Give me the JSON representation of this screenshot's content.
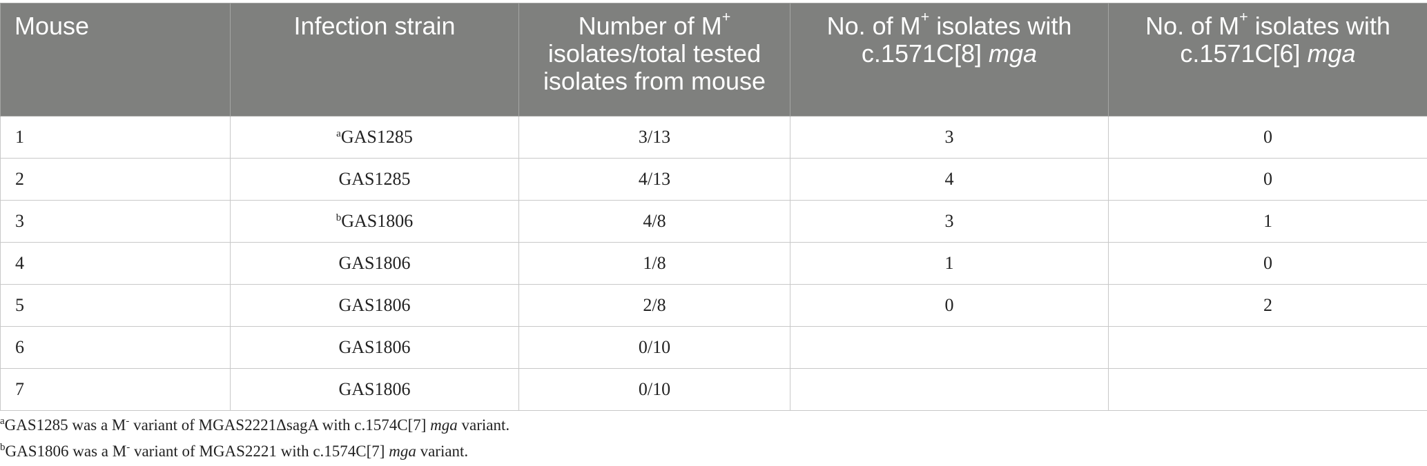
{
  "table": {
    "headers": {
      "mouse": "Mouse",
      "strain": "Infection strain",
      "number": {
        "line1_pre": "Number of M",
        "sup": "+",
        "line2": "isolates/total tested",
        "line3": "isolates from mouse"
      },
      "c8": {
        "line1_pre": "No. of M",
        "sup": "+",
        "line1_post": " isolates with",
        "line2_pre": "c.1571C[8] ",
        "line2_em": "mga"
      },
      "c6": {
        "line1_pre": "No. of M",
        "sup": "+",
        "line1_post": " isolates with",
        "line2_pre": "c.1571C[6] ",
        "line2_em": "mga"
      }
    },
    "rows": [
      {
        "mouse": "1",
        "strain_sup": "a",
        "strain": "GAS1285",
        "ratio": "3/13",
        "c8": "3",
        "c6": "0"
      },
      {
        "mouse": "2",
        "strain_sup": "",
        "strain": "GAS1285",
        "ratio": "4/13",
        "c8": "4",
        "c6": "0"
      },
      {
        "mouse": "3",
        "strain_sup": "b",
        "strain": "GAS1806",
        "ratio": "4/8",
        "c8": "3",
        "c6": "1"
      },
      {
        "mouse": "4",
        "strain_sup": "",
        "strain": "GAS1806",
        "ratio": "1/8",
        "c8": "1",
        "c6": "0"
      },
      {
        "mouse": "5",
        "strain_sup": "",
        "strain": "GAS1806",
        "ratio": "2/8",
        "c8": "0",
        "c6": "2"
      },
      {
        "mouse": "6",
        "strain_sup": "",
        "strain": "GAS1806",
        "ratio": "0/10",
        "c8": "",
        "c6": ""
      },
      {
        "mouse": "7",
        "strain_sup": "",
        "strain": "GAS1806",
        "ratio": "0/10",
        "c8": "",
        "c6": ""
      }
    ]
  },
  "footnotes": [
    {
      "sup": "a",
      "pre": "GAS1285 was a M",
      "minus": "-",
      "post": " variant of MGAS2221ΔsagA with c.1574C[7] ",
      "em": "mga",
      "end": " variant."
    },
    {
      "sup": "b",
      "pre": "GAS1806 was a M",
      "minus": "-",
      "post": " variant of MGAS2221 with c.1574C[7] ",
      "em": "mga",
      "end": " variant."
    }
  ]
}
